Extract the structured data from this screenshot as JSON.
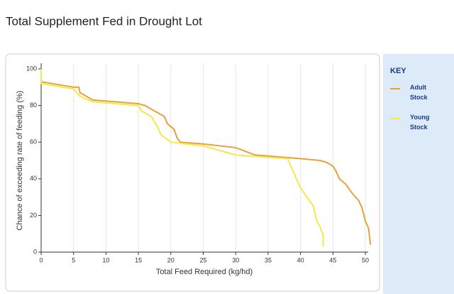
{
  "chart_data": {
    "type": "line",
    "title": "Total Supplement Fed in Drought Lot",
    "xlabel": "Total Feed Required (kg/hd)",
    "ylabel": "Chance of exceeding rate of feeding (%)",
    "legend_title": "KEY",
    "xlim": [
      0,
      50
    ],
    "ylim": [
      0,
      100
    ],
    "xticks": [
      0,
      5,
      10,
      15,
      20,
      25,
      30,
      35,
      40,
      45,
      50
    ],
    "yticks": [
      0,
      20,
      40,
      60,
      80,
      100
    ],
    "grid": true,
    "series": [
      {
        "name": "Adult Stock",
        "color": "#e8a13a",
        "x": [
          0,
          5,
          5.8,
          6,
          8,
          15,
          16,
          18,
          19,
          19.5,
          20.5,
          21,
          21.5,
          25,
          30,
          33,
          40,
          43,
          44,
          45,
          45.5,
          46,
          47,
          48,
          49,
          49.5,
          50,
          50.5,
          50.8
        ],
        "values": [
          93,
          90,
          90,
          87,
          83,
          81,
          80,
          76,
          74,
          70,
          67,
          62,
          60,
          59,
          57,
          53,
          51,
          50,
          49,
          47,
          44,
          40,
          37,
          32,
          28,
          24,
          17,
          13,
          4
        ]
      },
      {
        "name": "Young Stock",
        "color": "#f1ea4c",
        "x": [
          0,
          0,
          5,
          6,
          8,
          15,
          15.5,
          17,
          18,
          18.5,
          20,
          25,
          30,
          38,
          38.5,
          39,
          39.5,
          40,
          41,
          42,
          42.5,
          43,
          43.5,
          43.5
        ],
        "values": [
          100,
          92,
          89,
          85,
          82,
          80,
          77,
          74,
          68,
          64,
          60,
          58,
          53,
          51,
          47,
          43,
          39,
          35,
          30,
          25,
          17,
          14,
          9,
          3
        ]
      }
    ]
  }
}
